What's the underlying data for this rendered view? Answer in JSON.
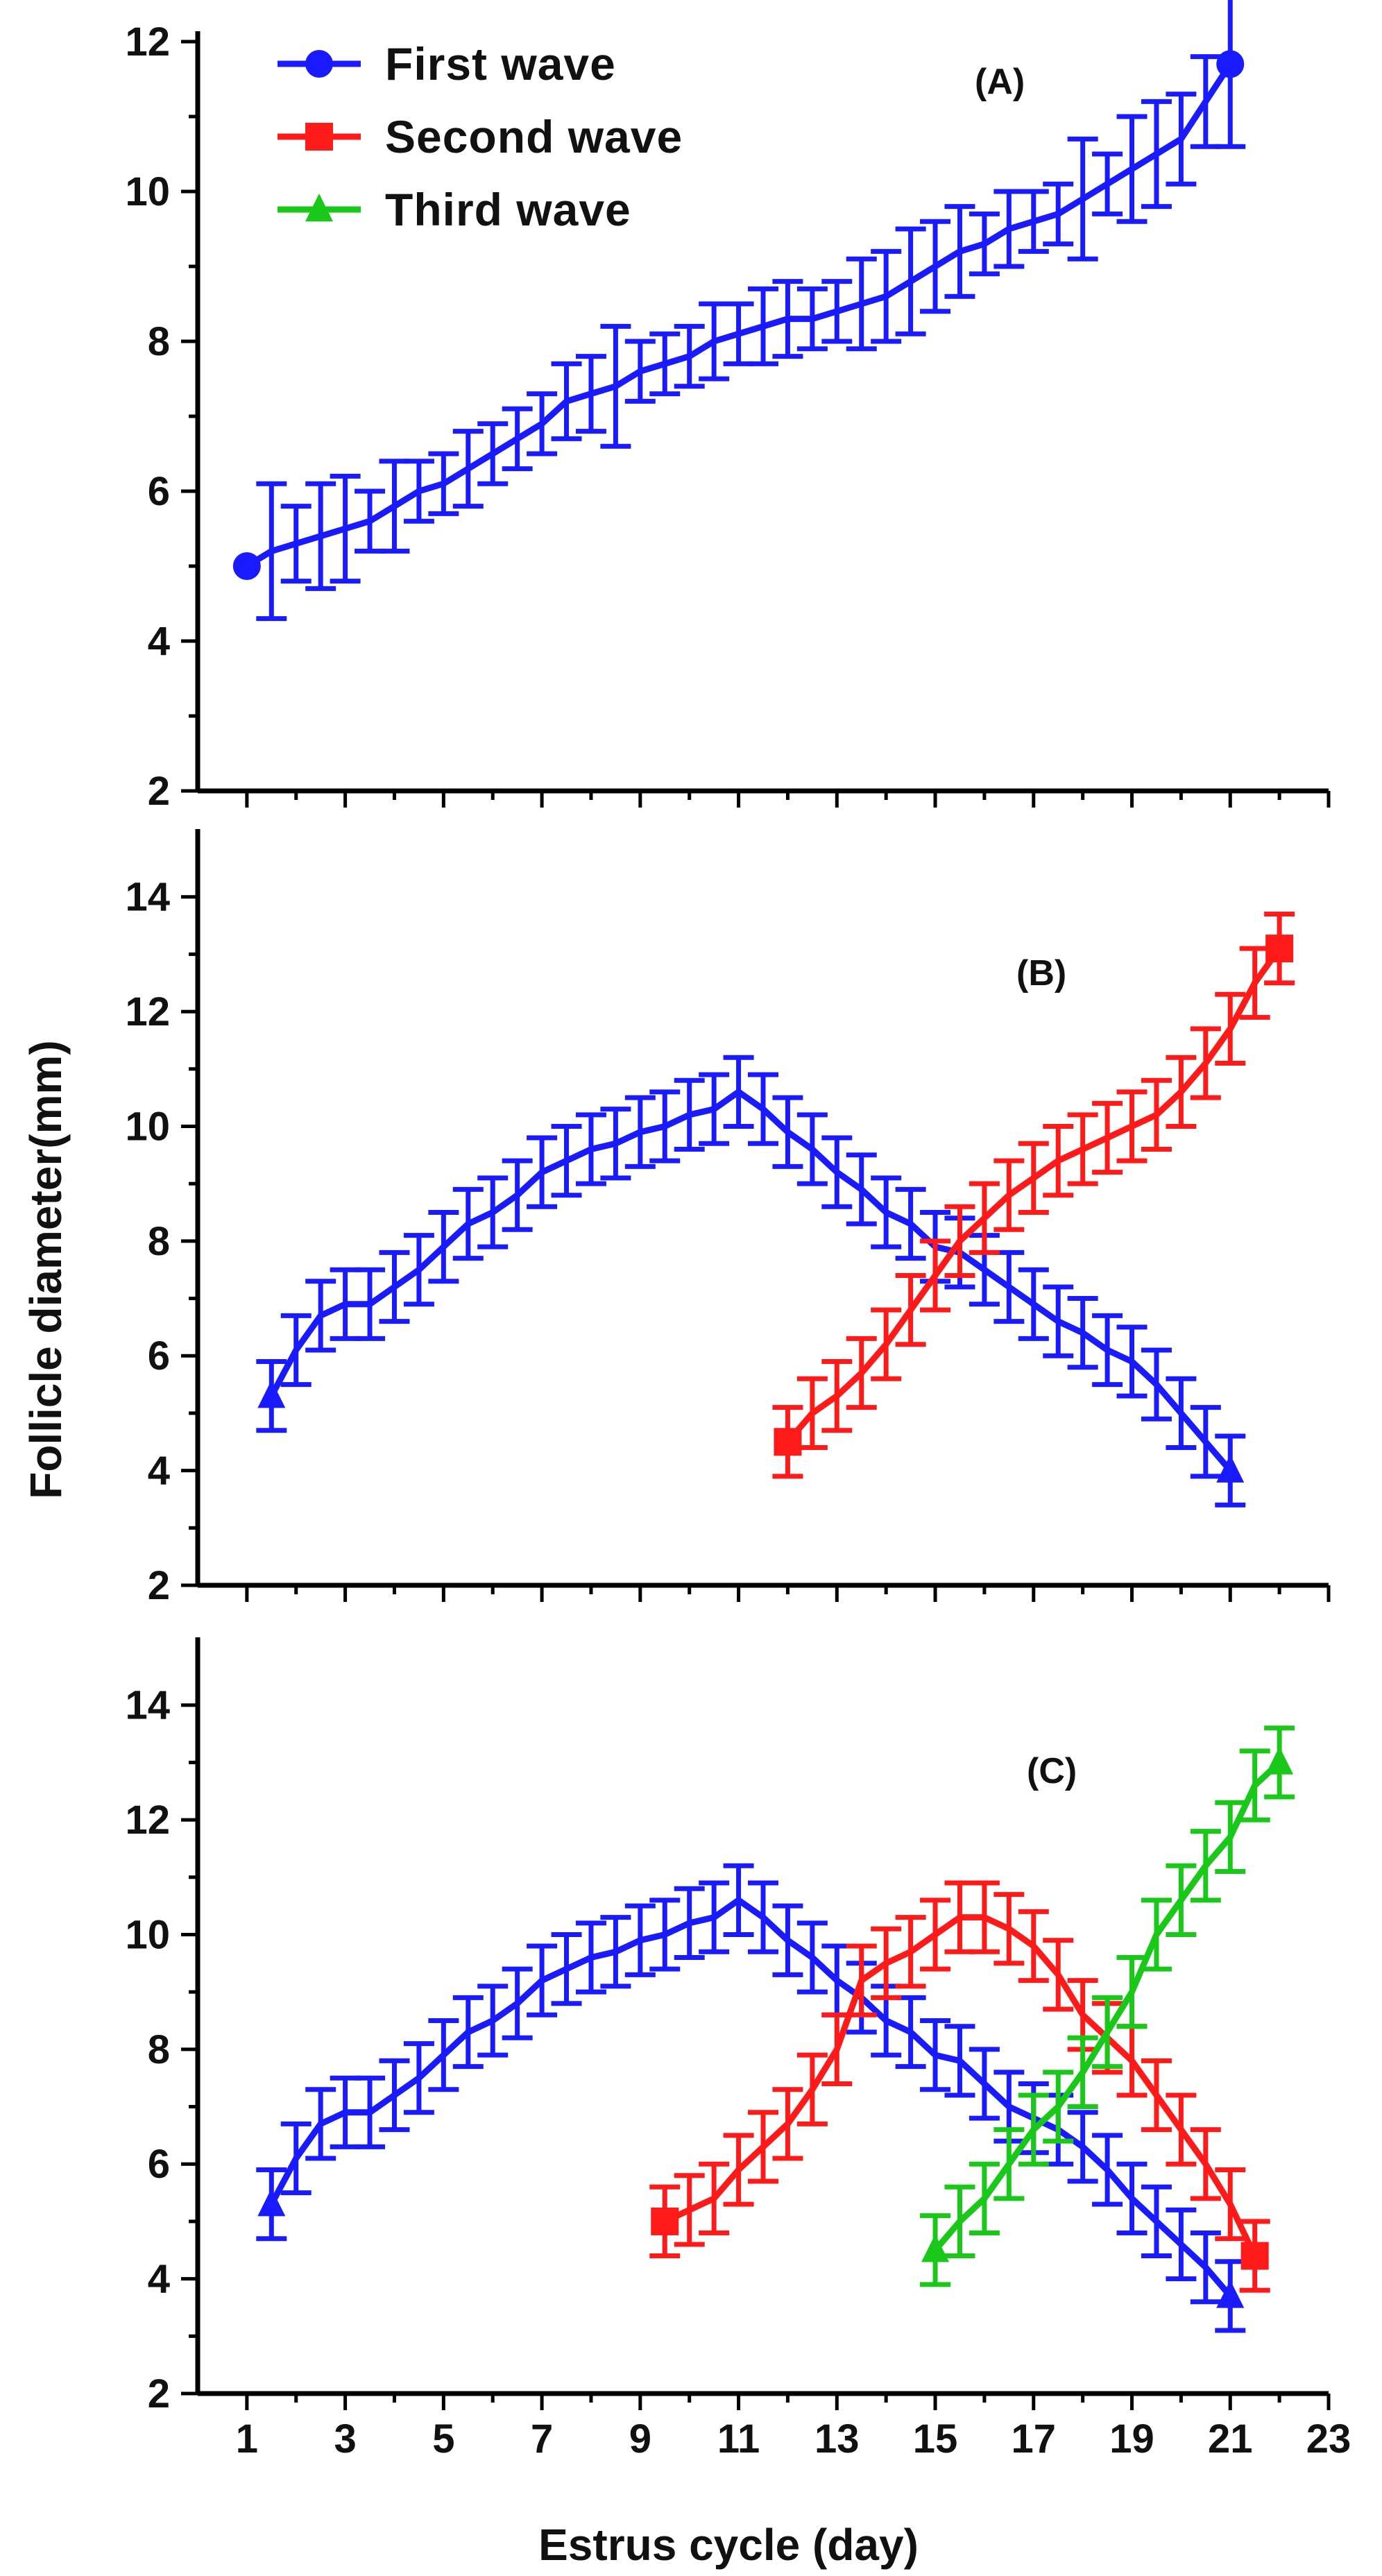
{
  "chart_data": [
    {
      "panel": "A",
      "type": "line",
      "label": "(A)",
      "ylim": [
        2,
        12
      ],
      "yticks": [
        2,
        4,
        6,
        8,
        10,
        12
      ],
      "xlim": [
        0,
        23
      ],
      "legend": {
        "placement": "top-left",
        "entries": [
          {
            "name": "First wave",
            "color": "#1a1aff",
            "marker": "circle"
          },
          {
            "name": "Second wave",
            "color": "#ff1a1a",
            "marker": "square"
          },
          {
            "name": " Third wave",
            "color": "#19c819",
            "marker": "triangle"
          }
        ]
      },
      "series": [
        {
          "name": "First wave",
          "color": "#1a1aff",
          "marker": "circle",
          "x": [
            1.0,
            1.5,
            2.0,
            2.5,
            3.0,
            3.5,
            4.0,
            4.5,
            5.0,
            5.5,
            6.0,
            6.5,
            7.0,
            7.5,
            8.0,
            8.5,
            9.0,
            9.5,
            10.0,
            10.5,
            11.0,
            11.5,
            12.0,
            12.5,
            13.0,
            13.5,
            14.0,
            14.5,
            15.0,
            15.5,
            16.0,
            16.5,
            17.0,
            17.5,
            18.0,
            18.5,
            19.0,
            19.5,
            20.0,
            20.5,
            21.0
          ],
          "y": [
            5.0,
            5.2,
            5.3,
            5.4,
            5.5,
            5.6,
            5.8,
            6.0,
            6.1,
            6.3,
            6.5,
            6.7,
            6.9,
            7.2,
            7.3,
            7.4,
            7.6,
            7.7,
            7.8,
            8.0,
            8.1,
            8.2,
            8.3,
            8.3,
            8.4,
            8.5,
            8.6,
            8.8,
            9.0,
            9.2,
            9.3,
            9.5,
            9.6,
            9.7,
            9.9,
            10.1,
            10.3,
            10.5,
            10.7,
            11.2,
            11.7
          ],
          "err": [
            0.0,
            0.9,
            0.5,
            0.7,
            0.7,
            0.4,
            0.6,
            0.4,
            0.4,
            0.5,
            0.4,
            0.4,
            0.4,
            0.5,
            0.5,
            0.8,
            0.4,
            0.4,
            0.4,
            0.5,
            0.4,
            0.5,
            0.5,
            0.4,
            0.4,
            0.6,
            0.6,
            0.7,
            0.6,
            0.6,
            0.4,
            0.5,
            0.4,
            0.4,
            0.8,
            0.4,
            0.7,
            0.7,
            0.6,
            0.6,
            1.1
          ]
        }
      ]
    },
    {
      "panel": "B",
      "type": "line",
      "label": "(B)",
      "ylim": [
        2,
        15
      ],
      "yticks": [
        2,
        4,
        6,
        8,
        10,
        12,
        14
      ],
      "xlim": [
        0,
        23
      ],
      "series": [
        {
          "name": "First wave",
          "color": "#1a1aff",
          "marker": "triangle",
          "x": [
            1.5,
            2.0,
            2.5,
            3.0,
            3.5,
            4.0,
            4.5,
            5.0,
            5.5,
            6.0,
            6.5,
            7.0,
            7.5,
            8.0,
            8.5,
            9.0,
            9.5,
            10.0,
            10.5,
            11.0,
            11.5,
            12.0,
            12.5,
            13.0,
            13.5,
            14.0,
            14.5,
            15.0,
            15.5,
            16.0,
            16.5,
            17.0,
            17.5,
            18.0,
            18.5,
            19.0,
            19.5,
            20.0,
            20.5,
            21.0
          ],
          "y": [
            5.3,
            6.1,
            6.7,
            6.9,
            6.9,
            7.2,
            7.5,
            7.9,
            8.3,
            8.5,
            8.8,
            9.2,
            9.4,
            9.6,
            9.7,
            9.9,
            10.0,
            10.2,
            10.3,
            10.6,
            10.3,
            9.9,
            9.6,
            9.2,
            8.9,
            8.5,
            8.3,
            7.9,
            7.8,
            7.5,
            7.2,
            6.9,
            6.6,
            6.4,
            6.1,
            5.9,
            5.5,
            5.0,
            4.5,
            4.0
          ]
        },
        {
          "name": "Second wave",
          "color": "#ff1a1a",
          "marker": "square",
          "x": [
            12.0,
            12.5,
            13.0,
            13.5,
            14.0,
            14.5,
            15.0,
            15.5,
            16.0,
            16.5,
            17.0,
            17.5,
            18.0,
            18.5,
            19.0,
            19.5,
            20.0,
            20.5,
            21.0,
            21.5,
            22.0
          ],
          "y": [
            4.5,
            5.0,
            5.3,
            5.7,
            6.2,
            6.8,
            7.4,
            8.0,
            8.4,
            8.8,
            9.1,
            9.4,
            9.6,
            9.8,
            10.0,
            10.2,
            10.6,
            11.1,
            11.7,
            12.5,
            13.1
          ]
        }
      ]
    },
    {
      "panel": "C",
      "type": "line",
      "label": "(C)",
      "ylim": [
        2,
        15
      ],
      "yticks": [
        2,
        4,
        6,
        8,
        10,
        12,
        14
      ],
      "xlim": [
        0,
        23
      ],
      "xticks": [
        1,
        3,
        5,
        7,
        9,
        11,
        13,
        15,
        17,
        19,
        21,
        23
      ],
      "xlabel": "Estrus cycle (day)",
      "series": [
        {
          "name": "First wave",
          "color": "#1a1aff",
          "marker": "triangle",
          "x": [
            1.5,
            2.0,
            2.5,
            3.0,
            3.5,
            4.0,
            4.5,
            5.0,
            5.5,
            6.0,
            6.5,
            7.0,
            7.5,
            8.0,
            8.5,
            9.0,
            9.5,
            10.0,
            10.5,
            11.0,
            11.5,
            12.0,
            12.5,
            13.0,
            13.5,
            14.0,
            14.5,
            15.0,
            15.5,
            16.0,
            16.5,
            17.0,
            17.5,
            18.0,
            18.5,
            19.0,
            19.5,
            20.0,
            20.5,
            21.0
          ],
          "y": [
            5.3,
            6.1,
            6.7,
            6.9,
            6.9,
            7.2,
            7.5,
            7.9,
            8.3,
            8.5,
            8.8,
            9.2,
            9.4,
            9.6,
            9.7,
            9.9,
            10.0,
            10.2,
            10.3,
            10.6,
            10.3,
            9.9,
            9.6,
            9.2,
            8.9,
            8.5,
            8.3,
            7.9,
            7.8,
            7.4,
            7.0,
            6.8,
            6.6,
            6.3,
            5.9,
            5.4,
            5.0,
            4.6,
            4.2,
            3.7
          ]
        },
        {
          "name": "Second wave",
          "color": "#ff1a1a",
          "marker": "square",
          "x": [
            9.5,
            10.0,
            10.5,
            11.0,
            11.5,
            12.0,
            12.5,
            13.0,
            13.5,
            14.0,
            14.5,
            15.0,
            15.5,
            16.0,
            16.5,
            17.0,
            17.5,
            18.0,
            18.5,
            19.0,
            19.5,
            20.0,
            20.5,
            21.0,
            21.5
          ],
          "y": [
            5.0,
            5.2,
            5.4,
            5.9,
            6.3,
            6.7,
            7.3,
            8.0,
            9.2,
            9.5,
            9.7,
            10.0,
            10.3,
            10.3,
            10.1,
            9.8,
            9.3,
            8.6,
            8.2,
            7.8,
            7.2,
            6.6,
            6.0,
            5.3,
            4.4
          ]
        },
        {
          "name": "Third wave",
          "color": "#19c819",
          "marker": "triangle",
          "x": [
            15.0,
            15.5,
            16.0,
            16.5,
            17.0,
            17.5,
            18.0,
            18.5,
            19.0,
            19.5,
            20.0,
            20.5,
            21.0,
            21.5,
            22.0
          ],
          "y": [
            4.5,
            5.0,
            5.4,
            6.0,
            6.6,
            7.0,
            7.6,
            8.3,
            9.0,
            10.0,
            10.6,
            11.2,
            11.7,
            12.6,
            13.0
          ]
        }
      ]
    }
  ],
  "ylabel": "Follicle diameter(mm)"
}
